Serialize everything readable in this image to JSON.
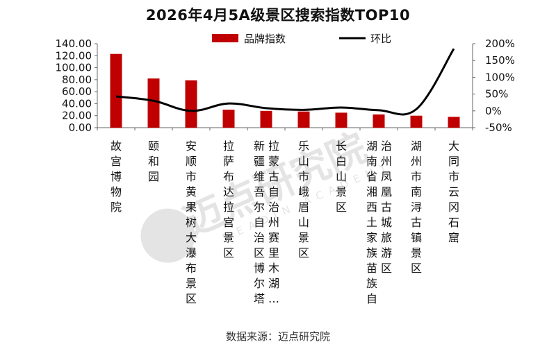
{
  "chart_data": {
    "type": "bar",
    "title": "2026年4月5A级景区搜索指数TOP10",
    "categories": [
      "故宫博物院",
      "颐和园",
      "安顺市黄果树大瀑布景区",
      "拉萨布达拉宫景区",
      "新疆维吾尔自治区博尔塔拉蒙古自治州赛里木湖…",
      "乐山市峨眉山景区",
      "长白山景区",
      "湖南省湘西土家族苗族自治州凤凰古城旅游区",
      "湖州市南浔古镇景区",
      "大同市云冈石窟"
    ],
    "category_labels": [
      "故宫博物院",
      "颐和园",
      "安顺市黄果树大瀑布景区",
      "拉萨布达拉宫景区",
      "新疆维吾尔自治区博尔塔拉蒙古自治州赛里木湖…",
      "乐山市峨眉山景区",
      "长白山景区",
      "湖南省湘西土家族苗族自治州凤凰古城旅游区",
      "湖州市南浔古镇景区",
      "大同市云冈石窟"
    ],
    "series": [
      {
        "name": "品牌指数",
        "type": "bar",
        "axis": "left",
        "color": "#c00000",
        "values": [
          123.0,
          82.0,
          79.0,
          30.0,
          28.0,
          27.0,
          25.0,
          22.0,
          20.0,
          18.0
        ]
      },
      {
        "name": "环比",
        "type": "line",
        "axis": "right",
        "color": "#000000",
        "values": [
          43,
          30,
          0,
          22,
          8,
          3,
          10,
          2,
          5,
          185
        ]
      }
    ],
    "y_left": {
      "min": 0,
      "max": 140,
      "step": 20,
      "ticks": [
        "0.00",
        "20.00",
        "40.00",
        "60.00",
        "80.00",
        "100.00",
        "120.00",
        "140.00"
      ]
    },
    "y_right": {
      "min": -50,
      "max": 200,
      "step": 50,
      "ticks": [
        "-50%",
        "0%",
        "50%",
        "100%",
        "150%",
        "200%"
      ]
    },
    "legend_position": "top",
    "grid": false
  },
  "source_text": "数据来源：迈点研究院",
  "watermark": {
    "text": "迈点研究院",
    "sub": "MEADIN ACADEMY"
  }
}
